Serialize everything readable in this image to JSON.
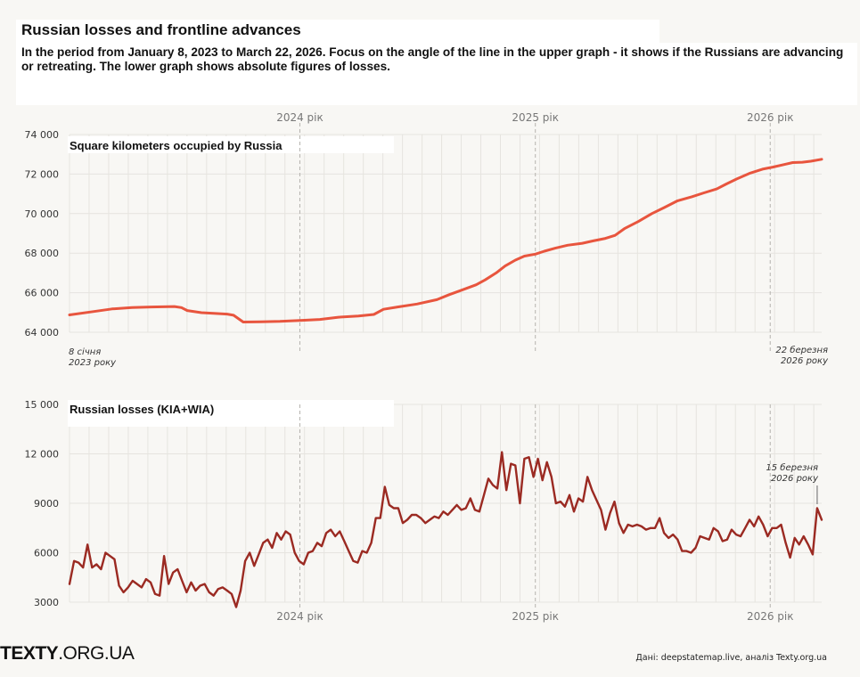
{
  "title": "Russian losses and frontline advances",
  "subtitle": "In the period from January 8, 2023 to March 22, 2026. Focus on the angle of the line in the upper graph - it shows if the Russians are advancing or retreating. The lower graph shows absolute figures of losses.",
  "footer": {
    "logo_bold": "TEXTY",
    "logo_rest": ".ORG.UA",
    "source": "Дані: deepstatemap.live, аналіз Texty.org.ua"
  },
  "colors": {
    "territory_line": "#e8553e",
    "losses_line": "#9b2a22",
    "background": "#f8f7f4",
    "grid": "#e6e4df"
  },
  "chart_data": [
    {
      "type": "line",
      "title": "Square kilometers occupied by Russia",
      "y_ticks": [
        "74 000",
        "72 000",
        "70 000",
        "68 000",
        "66 000",
        "64 000"
      ],
      "ylim": [
        64000,
        74000
      ],
      "xlim": [
        "2023-01-08",
        "2026-03-22"
      ],
      "year_markers": [
        {
          "date": "2024-01-01",
          "label": "2024 рік"
        },
        {
          "date": "2025-01-01",
          "label": "2025 рік"
        },
        {
          "date": "2026-01-01",
          "label": "2026 рік"
        }
      ],
      "start_label_1": "8 січня",
      "start_label_2": "2023 року",
      "end_label_1": "22 березня",
      "end_label_2": "2026 року",
      "series": [
        {
          "points": [
            [
              "2023-01-08",
              64880
            ],
            [
              "2023-02-15",
              65050
            ],
            [
              "2023-03-15",
              65180
            ],
            [
              "2023-04-15",
              65250
            ],
            [
              "2023-05-15",
              65280
            ],
            [
              "2023-06-20",
              65300
            ],
            [
              "2023-07-01",
              65250
            ],
            [
              "2023-07-10",
              65100
            ],
            [
              "2023-08-01",
              64990
            ],
            [
              "2023-08-20",
              64960
            ],
            [
              "2023-09-10",
              64920
            ],
            [
              "2023-09-20",
              64860
            ],
            [
              "2023-10-05",
              64520
            ],
            [
              "2023-11-01",
              64530
            ],
            [
              "2023-12-01",
              64550
            ],
            [
              "2024-01-01",
              64600
            ],
            [
              "2024-02-01",
              64650
            ],
            [
              "2024-03-01",
              64760
            ],
            [
              "2024-04-01",
              64820
            ],
            [
              "2024-04-25",
              64900
            ],
            [
              "2024-05-10",
              65160
            ],
            [
              "2024-06-01",
              65280
            ],
            [
              "2024-07-01",
              65430
            ],
            [
              "2024-08-01",
              65650
            ],
            [
              "2024-08-20",
              65900
            ],
            [
              "2024-09-10",
              66150
            ],
            [
              "2024-10-01",
              66400
            ],
            [
              "2024-10-15",
              66650
            ],
            [
              "2024-11-01",
              67000
            ],
            [
              "2024-11-15",
              67350
            ],
            [
              "2024-12-01",
              67650
            ],
            [
              "2024-12-15",
              67850
            ],
            [
              "2025-01-01",
              67950
            ],
            [
              "2025-01-15",
              68100
            ],
            [
              "2025-02-01",
              68250
            ],
            [
              "2025-02-20",
              68400
            ],
            [
              "2025-03-15",
              68500
            ],
            [
              "2025-04-01",
              68620
            ],
            [
              "2025-04-20",
              68750
            ],
            [
              "2025-05-05",
              68900
            ],
            [
              "2025-05-20",
              69250
            ],
            [
              "2025-06-10",
              69600
            ],
            [
              "2025-07-01",
              70000
            ],
            [
              "2025-07-20",
              70300
            ],
            [
              "2025-08-10",
              70650
            ],
            [
              "2025-09-01",
              70850
            ],
            [
              "2025-09-20",
              71050
            ],
            [
              "2025-10-10",
              71250
            ],
            [
              "2025-10-25",
              71500
            ],
            [
              "2025-11-10",
              71750
            ],
            [
              "2025-12-01",
              72050
            ],
            [
              "2025-12-20",
              72250
            ],
            [
              "2026-01-05",
              72350
            ],
            [
              "2026-01-25",
              72500
            ],
            [
              "2026-02-05",
              72580
            ],
            [
              "2026-02-20",
              72600
            ],
            [
              "2026-03-05",
              72650
            ],
            [
              "2026-03-22",
              72750
            ]
          ]
        }
      ]
    },
    {
      "type": "line",
      "title": "Russian losses (KIA+WIA)",
      "y_ticks": [
        "15 000",
        "12 000",
        "9000",
        "6000",
        "3000"
      ],
      "ylim": [
        3000,
        15000
      ],
      "xlim": [
        "2023-01-08",
        "2026-03-22"
      ],
      "year_markers": [
        {
          "date": "2024-01-01",
          "label": "2024 рік"
        },
        {
          "date": "2025-01-01",
          "label": "2025 рік"
        },
        {
          "date": "2026-01-01",
          "label": "2026 рік"
        }
      ],
      "annotation_1": "15 березня",
      "annotation_2": "2026 року",
      "annotation_date": "2026-03-15",
      "series": [
        {
          "start": "2023-01-08",
          "step_days": 7,
          "values": [
            4100,
            5500,
            5400,
            5100,
            6500,
            5100,
            5300,
            5000,
            6000,
            5800,
            5600,
            4000,
            3600,
            3900,
            4300,
            4100,
            3900,
            4400,
            4200,
            3500,
            3400,
            5800,
            4100,
            4800,
            5000,
            4300,
            3600,
            4200,
            3700,
            4000,
            4100,
            3600,
            3400,
            3800,
            3900,
            3700,
            3500,
            2700,
            3700,
            5500,
            6000,
            5200,
            5900,
            6600,
            6800,
            6300,
            7200,
            6800,
            7300,
            7100,
            6000,
            5500,
            5300,
            6000,
            6100,
            6600,
            6400,
            7200,
            7400,
            7000,
            7300,
            6700,
            6100,
            5500,
            5400,
            6100,
            6000,
            6600,
            8100,
            8100,
            10000,
            8900,
            8700,
            8700,
            7800,
            8000,
            8300,
            8300,
            8100,
            7800,
            8000,
            8200,
            8100,
            8500,
            8300,
            8600,
            8900,
            8600,
            8700,
            9300,
            8600,
            8500,
            9500,
            10500,
            10100,
            9900,
            12100,
            9800,
            11400,
            11300,
            9000,
            11700,
            11800,
            10600,
            11700,
            10400,
            11500,
            10600,
            9000,
            9100,
            8800,
            9500,
            8500,
            9300,
            9100,
            10600,
            9800,
            9200,
            8600,
            7400,
            8400,
            9100,
            7800,
            7200,
            7700,
            7600,
            7700,
            7600,
            7400,
            7500,
            7500,
            8100,
            7200,
            6900,
            7100,
            6800,
            6100,
            6100,
            6000,
            6300,
            7000,
            6900,
            6800,
            7500,
            7300,
            6700,
            6800,
            7400,
            7100,
            7000,
            7500,
            8000,
            7600,
            8200,
            7700,
            7000,
            7500,
            7500,
            7700,
            6600,
            5700,
            6900,
            6500,
            7000,
            6500,
            5900,
            8700,
            8000
          ]
        }
      ]
    }
  ]
}
